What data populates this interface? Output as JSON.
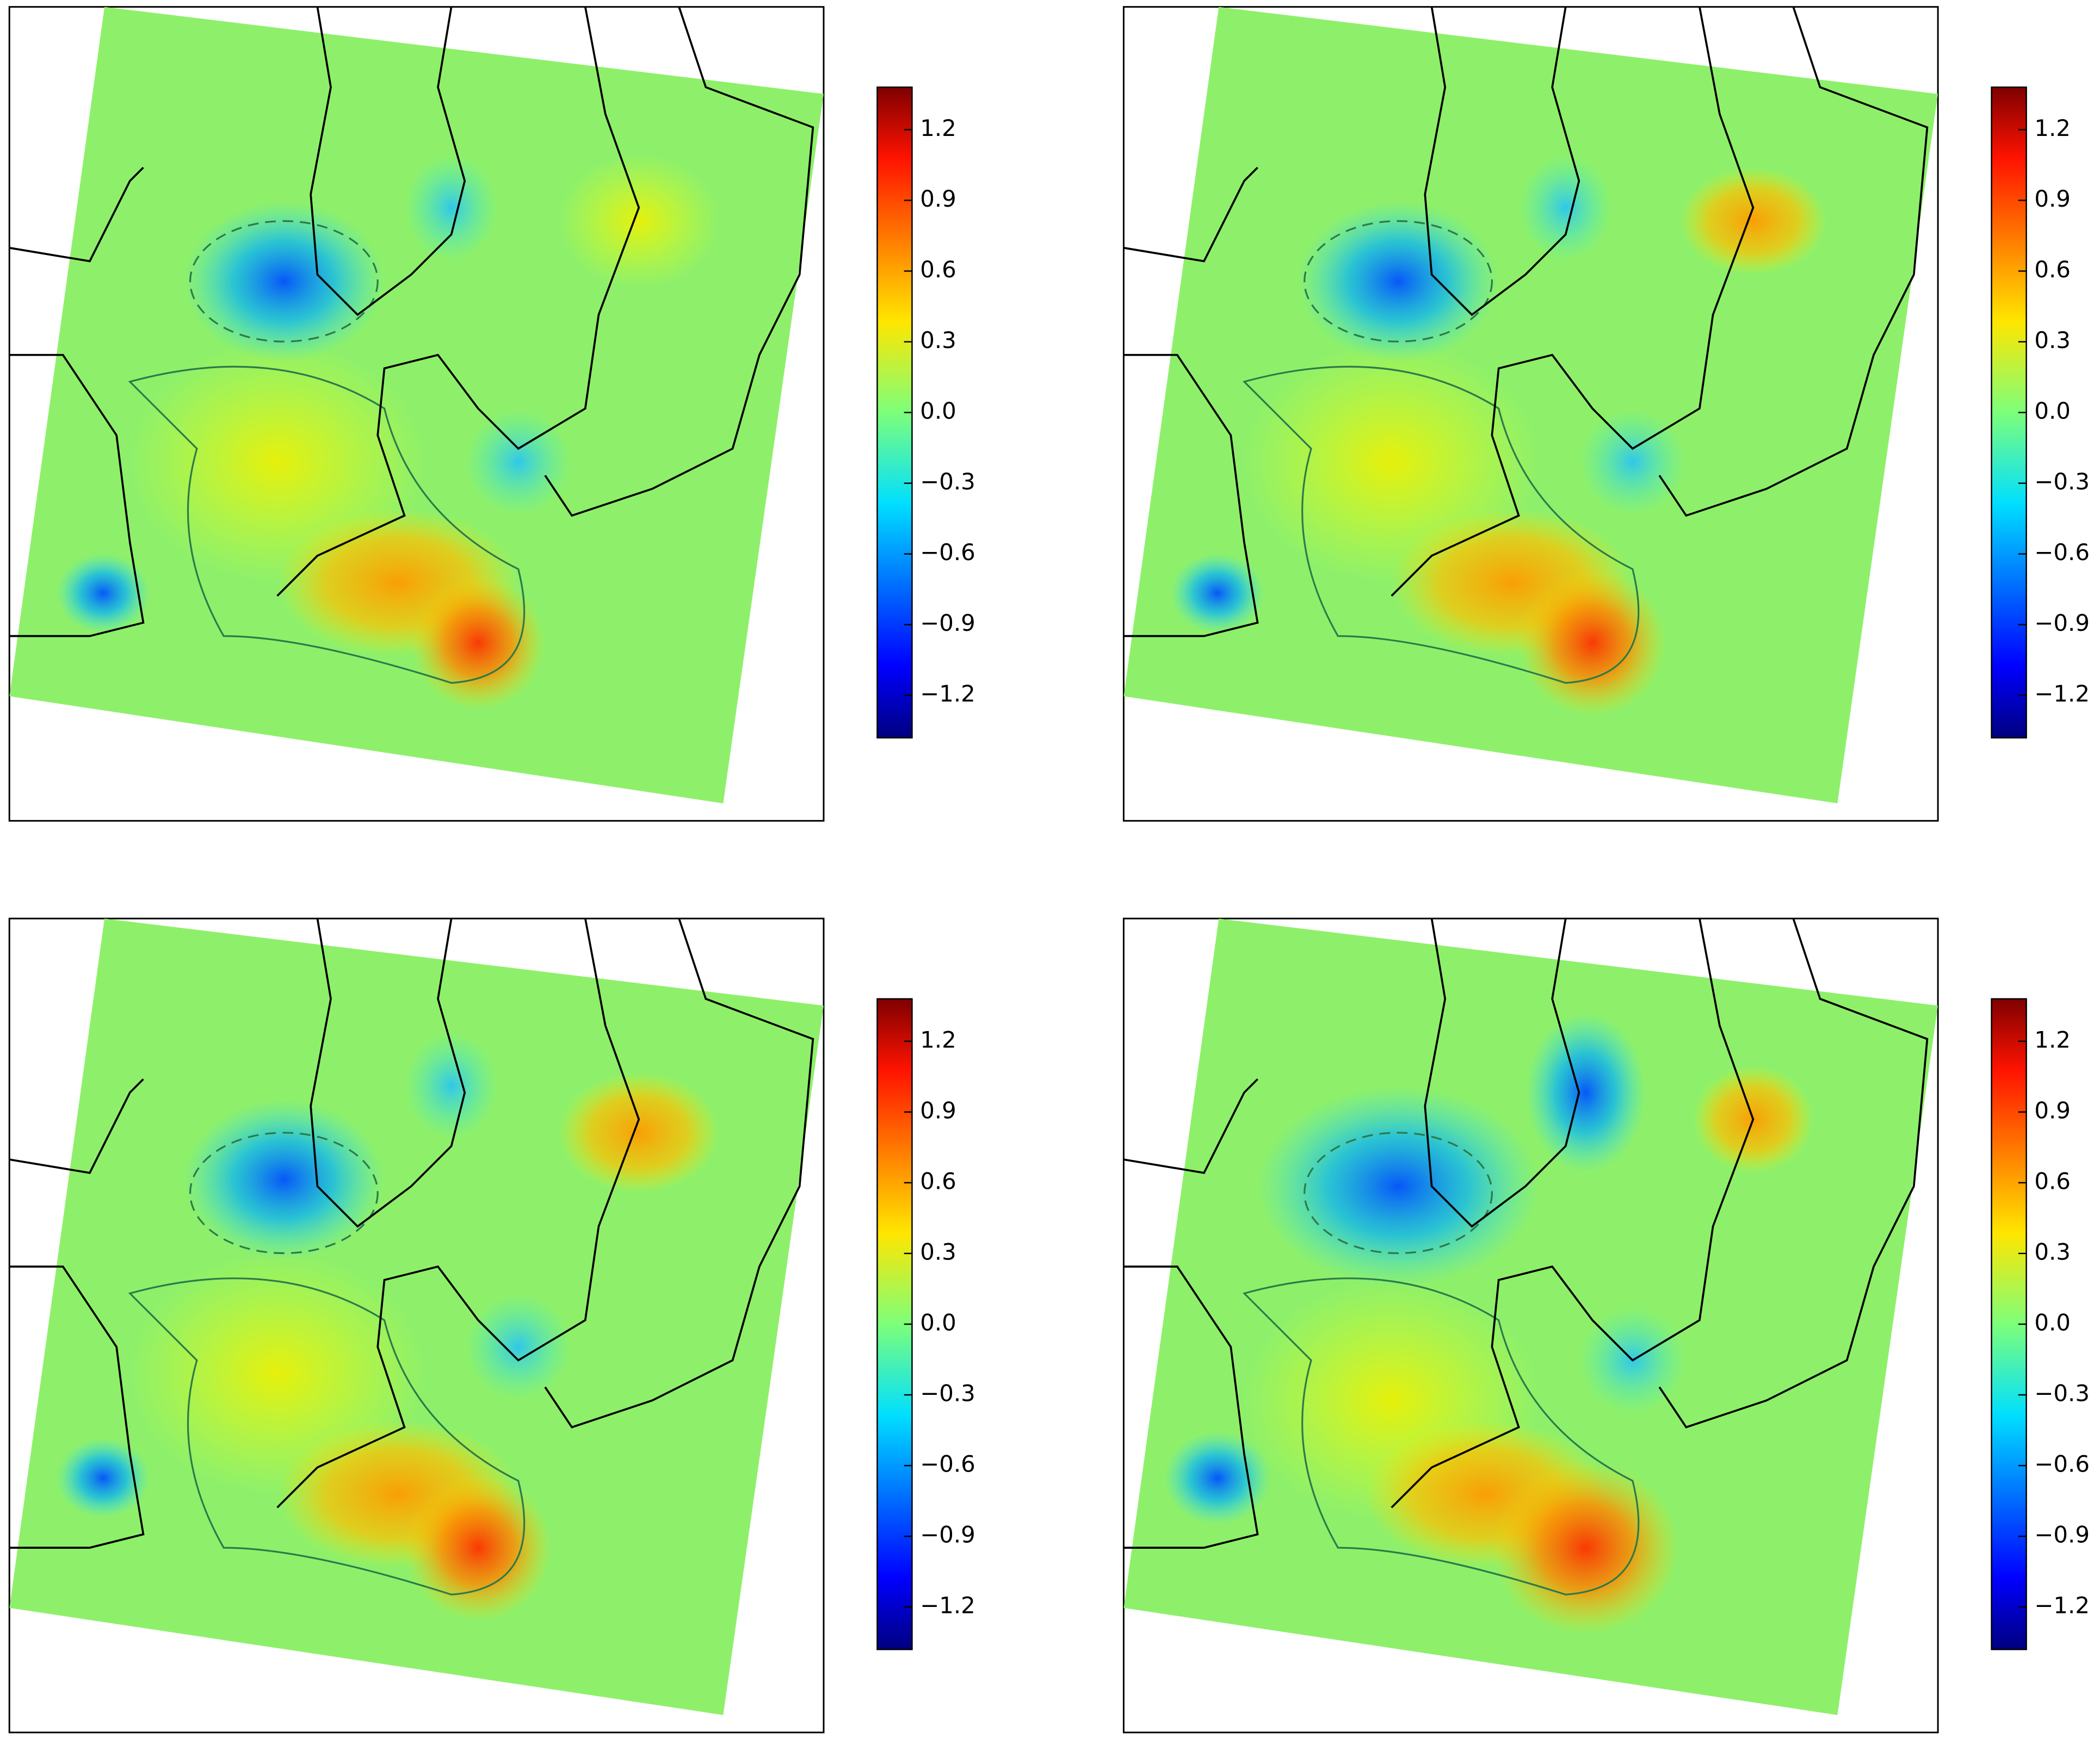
{
  "chart_data": [
    {
      "type": "map",
      "colorbar": {
        "lim": [
          -1.38,
          1.38
        ],
        "ticks": [
          {
            "value": 1.2,
            "label": "1.2"
          },
          {
            "value": 0.9,
            "label": "0.9"
          },
          {
            "value": 0.6,
            "label": "0.6"
          },
          {
            "value": 0.3,
            "label": "0.3"
          },
          {
            "value": 0,
            "label": "0.0"
          },
          {
            "value": -0.3,
            "label": "−0.3"
          },
          {
            "value": -0.6,
            "label": "−0.6"
          },
          {
            "value": -0.9,
            "label": "−0.9"
          },
          {
            "value": -1.2,
            "label": "−1.2"
          }
        ]
      }
    },
    {
      "type": "map",
      "colorbar": {
        "lim": [
          -1.38,
          1.38
        ],
        "ticks": [
          {
            "value": 1.2,
            "label": "1.2"
          },
          {
            "value": 0.9,
            "label": "0.9"
          },
          {
            "value": 0.6,
            "label": "0.6"
          },
          {
            "value": 0.3,
            "label": "0.3"
          },
          {
            "value": 0,
            "label": "0.0"
          },
          {
            "value": -0.3,
            "label": "−0.3"
          },
          {
            "value": -0.6,
            "label": "−0.6"
          },
          {
            "value": -0.9,
            "label": "−0.9"
          },
          {
            "value": -1.2,
            "label": "−1.2"
          }
        ]
      }
    },
    {
      "type": "map",
      "colorbar": {
        "lim": [
          -1.38,
          1.38
        ],
        "ticks": [
          {
            "value": 1.2,
            "label": "1.2"
          },
          {
            "value": 0.9,
            "label": "0.9"
          },
          {
            "value": 0.6,
            "label": "0.6"
          },
          {
            "value": 0.3,
            "label": "0.3"
          },
          {
            "value": 0,
            "label": "0.0"
          },
          {
            "value": -0.3,
            "label": "−0.3"
          },
          {
            "value": -0.6,
            "label": "−0.6"
          },
          {
            "value": -0.9,
            "label": "−0.9"
          },
          {
            "value": -1.2,
            "label": "−1.2"
          }
        ]
      }
    },
    {
      "type": "map",
      "colorbar": {
        "lim": [
          -1.38,
          1.38
        ],
        "ticks": [
          {
            "value": 1.2,
            "label": "1.2"
          },
          {
            "value": 0.9,
            "label": "0.9"
          },
          {
            "value": 0.6,
            "label": "0.6"
          },
          {
            "value": 0.3,
            "label": "0.3"
          },
          {
            "value": 0,
            "label": "0.0"
          },
          {
            "value": -0.3,
            "label": "−0.3"
          },
          {
            "value": -0.6,
            "label": "−0.6"
          },
          {
            "value": -0.9,
            "label": "−0.9"
          },
          {
            "value": -1.2,
            "label": "−1.2"
          }
        ]
      }
    }
  ]
}
